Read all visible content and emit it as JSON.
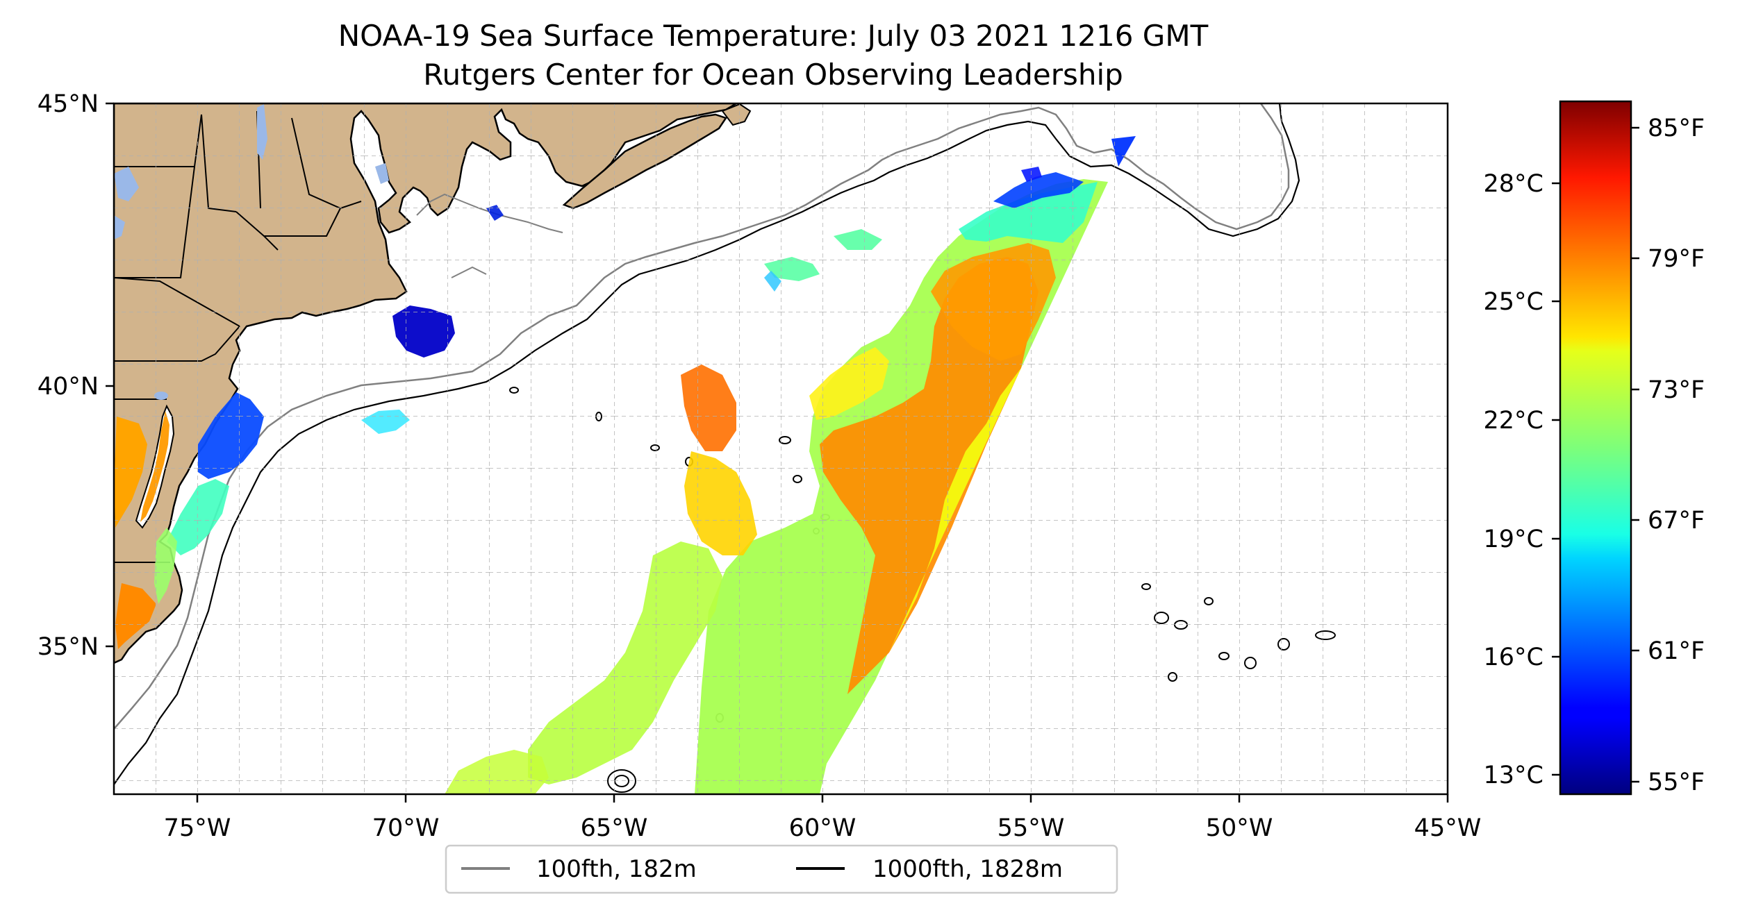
{
  "title": {
    "line1": "NOAA-19 Sea Surface Temperature: July 03 2021 1216 GMT",
    "line2": "Rutgers Center for Ocean Observing Leadership"
  },
  "map": {
    "lon_range": [
      -77,
      -45
    ],
    "lat_range": [
      32.5,
      45
    ],
    "x_ticks": [
      "75°W",
      "70°W",
      "65°W",
      "60°W",
      "55°W",
      "50°W",
      "45°W"
    ],
    "y_ticks": [
      "45°N",
      "40°N",
      "35°N"
    ],
    "gridlines": true,
    "land_color": "#d2b48c",
    "lake_color": "#9ab8e8",
    "shelf_100fth_color": "#808080",
    "shelf_1000fth_color": "#000000"
  },
  "legend": {
    "placement": "bottom-center",
    "items": [
      {
        "label": "100fth, 182m",
        "color": "#808080"
      },
      {
        "label": "1000fth, 1828m",
        "color": "#000000"
      }
    ]
  },
  "colorbar": {
    "colormap": "jet",
    "celsius_ticks": [
      "28°C",
      "25°C",
      "22°C",
      "19°C",
      "16°C",
      "13°C"
    ],
    "fahrenheit_ticks": [
      "85°F",
      "79°F",
      "73°F",
      "67°F",
      "61°F",
      "55°F"
    ]
  }
}
